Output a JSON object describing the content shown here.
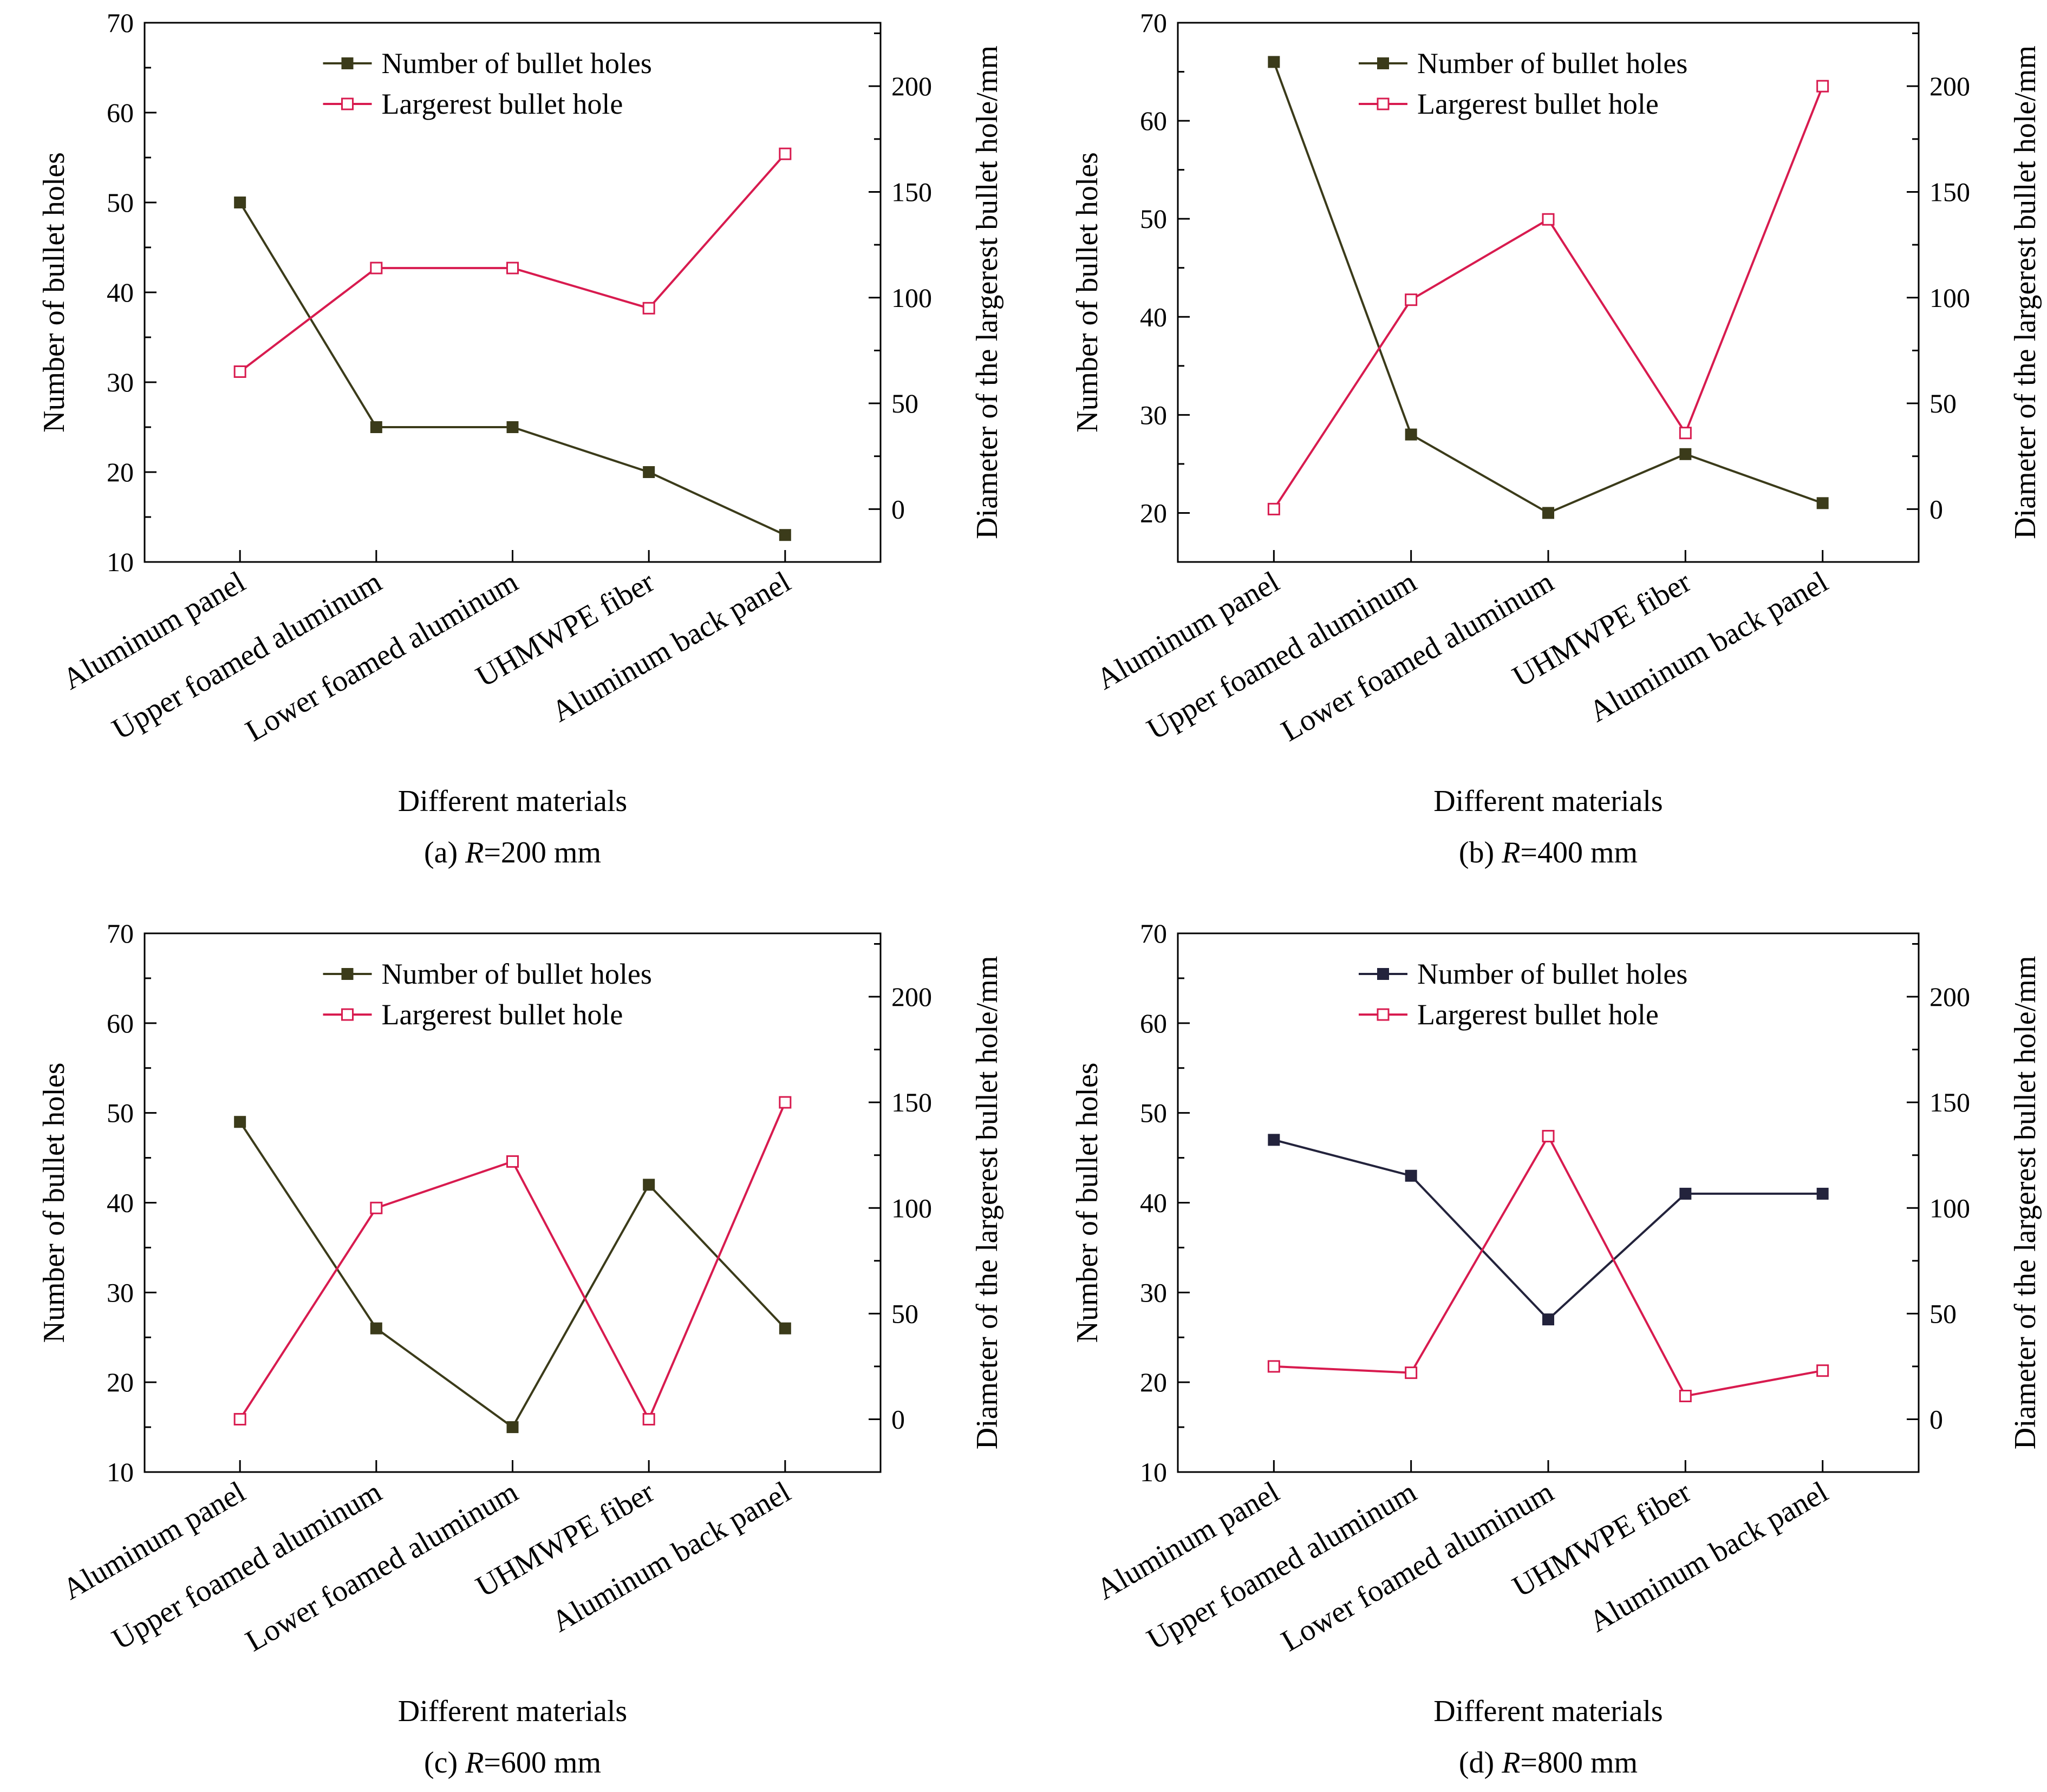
{
  "chart_data": [
    {
      "type": "line",
      "caption_prefix": "(a) ",
      "caption_var": "R",
      "caption_suffix": "=200 mm",
      "xlabel": "Different materials",
      "ylabel": "Number of bullet holes",
      "ylabel_right": "Diameter of the largerest bullet hole/mm",
      "categories": [
        "Aluminum panel",
        "Upper foamed aluminum",
        "Lower foamed aluminum",
        "UHMWPE fiber",
        "Aluminum back panel"
      ],
      "ylim": [
        10,
        70
      ],
      "yticks": [
        10,
        20,
        30,
        40,
        50,
        60,
        70
      ],
      "ylim_right": [
        -25,
        230
      ],
      "yticks_right": [
        0,
        50,
        100,
        150,
        200
      ],
      "legend_position": "top-center",
      "series": [
        {
          "name": "Number of bullet holes",
          "axis": "left",
          "color": "#3b3b1a",
          "marker": "filled-square",
          "values": [
            50,
            25,
            25,
            20,
            13
          ]
        },
        {
          "name": "Largerest bullet hole",
          "axis": "right",
          "color": "#d81b4f",
          "marker": "open-square",
          "values": [
            65,
            114,
            114,
            95,
            168
          ]
        }
      ]
    },
    {
      "type": "line",
      "caption_prefix": "(b) ",
      "caption_var": "R",
      "caption_suffix": "=400 mm",
      "xlabel": "Different materials",
      "ylabel": "Number of bullet holes",
      "ylabel_right": "Diameter of the largerest bullet hole/mm",
      "categories": [
        "Aluminum panel",
        "Upper foamed aluminum",
        "Lower foamed aluminum",
        "UHMWPE fiber",
        "Aluminum back panel"
      ],
      "ylim": [
        15,
        70
      ],
      "yticks": [
        20,
        30,
        40,
        50,
        60,
        70
      ],
      "ylim_right": [
        -25,
        230
      ],
      "yticks_right": [
        0,
        50,
        100,
        150,
        200
      ],
      "legend_position": "top-center",
      "series": [
        {
          "name": "Number of bullet holes",
          "axis": "left",
          "color": "#3b3b1a",
          "marker": "filled-square",
          "values": [
            66,
            28,
            20,
            26,
            21
          ]
        },
        {
          "name": "Largerest bullet hole",
          "axis": "right",
          "color": "#d81b4f",
          "marker": "open-square",
          "values": [
            0,
            99,
            137,
            36,
            200
          ]
        }
      ]
    },
    {
      "type": "line",
      "caption_prefix": "(c) ",
      "caption_var": "R",
      "caption_suffix": "=600 mm",
      "xlabel": "Different materials",
      "ylabel": "Number of bullet holes",
      "ylabel_right": "Diameter of the largerest bullet hole/mm",
      "categories": [
        "Aluminum panel",
        "Upper foamed aluminum",
        "Lower foamed aluminum",
        "UHMWPE fiber",
        "Aluminum back panel"
      ],
      "ylim": [
        10,
        70
      ],
      "yticks": [
        10,
        20,
        30,
        40,
        50,
        60,
        70
      ],
      "ylim_right": [
        -25,
        230
      ],
      "yticks_right": [
        0,
        50,
        100,
        150,
        200
      ],
      "legend_position": "top-center",
      "series": [
        {
          "name": "Number of bullet holes",
          "axis": "left",
          "color": "#3b3b1a",
          "marker": "filled-square",
          "values": [
            49,
            26,
            15,
            42,
            26
          ]
        },
        {
          "name": "Largerest bullet hole",
          "axis": "right",
          "color": "#d81b4f",
          "marker": "open-square",
          "values": [
            0,
            100,
            122,
            0,
            150
          ]
        }
      ]
    },
    {
      "type": "line",
      "caption_prefix": "(d) ",
      "caption_var": "R",
      "caption_suffix": "=800 mm",
      "xlabel": "Different materials",
      "ylabel": "Number of bullet holes",
      "ylabel_right": "Diameter of the largerest bullet hole/mm",
      "categories": [
        "Aluminum panel",
        "Upper foamed aluminum",
        "Lower foamed aluminum",
        "UHMWPE fiber",
        "Aluminum back panel"
      ],
      "ylim": [
        10,
        70
      ],
      "yticks": [
        10,
        20,
        30,
        40,
        50,
        60,
        70
      ],
      "ylim_right": [
        -25,
        230
      ],
      "yticks_right": [
        0,
        50,
        100,
        150,
        200
      ],
      "legend_position": "top-center",
      "series": [
        {
          "name": "Number of bullet holes",
          "axis": "left",
          "color": "#23233c",
          "marker": "filled-square",
          "values": [
            47,
            43,
            27,
            41,
            41
          ]
        },
        {
          "name": "Largerest bullet hole",
          "axis": "right",
          "color": "#d81b4f",
          "marker": "open-square",
          "values": [
            25,
            22,
            134,
            11,
            23
          ]
        }
      ]
    }
  ]
}
